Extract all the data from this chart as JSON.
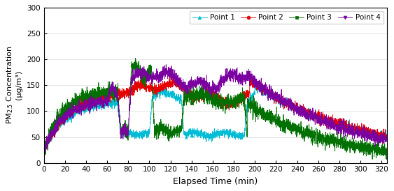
{
  "xlabel": "Elapsed Time (min)",
  "xlim": [
    0,
    325
  ],
  "ylim": [
    0,
    300
  ],
  "xticks": [
    0,
    20,
    40,
    60,
    80,
    100,
    120,
    140,
    160,
    180,
    200,
    220,
    240,
    260,
    280,
    300,
    320
  ],
  "yticks": [
    0,
    50,
    100,
    150,
    200,
    250,
    300
  ],
  "colors": {
    "point1": "#00bcd4",
    "point2": "#e60000",
    "point3": "#007000",
    "point4": "#7b00a0"
  },
  "legend_labels": [
    "Point 1",
    "Point 2",
    "Point 3",
    "Point 4"
  ],
  "figsize": [
    5.63,
    2.74
  ],
  "dpi": 100,
  "noise_seed": 42
}
